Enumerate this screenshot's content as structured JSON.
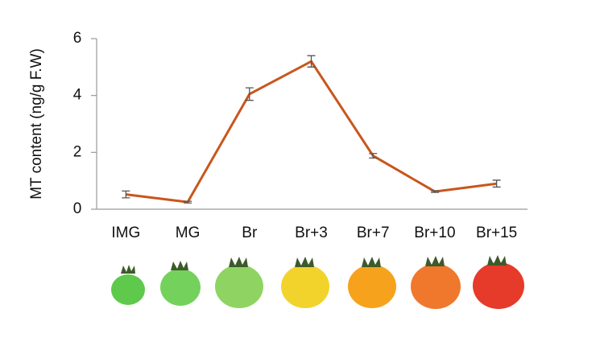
{
  "chart_data": {
    "type": "line",
    "ylabel": "MT content (ng/g F.W)",
    "categories": [
      "IMG",
      "MG",
      "Br",
      "Br+3",
      "Br+7",
      "Br+10",
      "Br+15"
    ],
    "values": [
      0.52,
      0.25,
      4.05,
      5.2,
      1.88,
      0.62,
      0.9
    ],
    "errors": [
      0.12,
      0.03,
      0.22,
      0.2,
      0.08,
      0.03,
      0.12
    ],
    "color": "#c9561c",
    "ylim": [
      0,
      6
    ],
    "yticks": [
      0,
      2,
      4,
      6
    ],
    "grid": false
  }
}
